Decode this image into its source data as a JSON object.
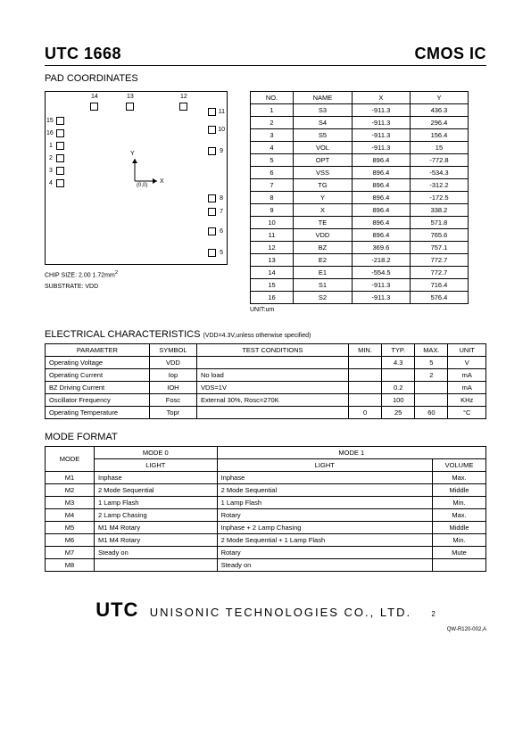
{
  "header": {
    "part": "UTC 1668",
    "type": "CMOS IC"
  },
  "section_pad_title": "PAD COORDINATES",
  "chip": {
    "note1": "CHIP SIZE: 2.00     1.72mm",
    "note1_sup": "2",
    "note2": "SUBSTRATE: VDD",
    "origin_label": "(0,0)",
    "x_label": "X",
    "y_label": "Y",
    "top_labels": [
      "14",
      "13",
      "12"
    ],
    "left_labels": [
      "15",
      "16",
      "1",
      "2",
      "3",
      "4"
    ],
    "right_labels": [
      "11",
      "10",
      "9",
      "8",
      "7",
      "6",
      "5"
    ]
  },
  "coord": {
    "headers": [
      "NO.",
      "NAME",
      "X",
      "Y"
    ],
    "rows": [
      [
        "1",
        "S3",
        "-911.3",
        "436.3"
      ],
      [
        "2",
        "S4",
        "-911.3",
        "296.4"
      ],
      [
        "3",
        "S5",
        "-911.3",
        "156.4"
      ],
      [
        "4",
        "VOL",
        "-911.3",
        "15"
      ],
      [
        "5",
        "OPT",
        "896.4",
        "-772.8"
      ],
      [
        "6",
        "VSS",
        "896.4",
        "-534.3"
      ],
      [
        "7",
        "TG",
        "896.4",
        "-312.2"
      ],
      [
        "8",
        "Y",
        "896.4",
        "-172.5"
      ],
      [
        "9",
        "X",
        "896.4",
        "338.2"
      ],
      [
        "10",
        "TE",
        "896.4",
        "571.8"
      ],
      [
        "11",
        "VDD",
        "896.4",
        "765.6"
      ],
      [
        "12",
        "BZ",
        "369.6",
        "757.1"
      ],
      [
        "13",
        "E2",
        "-218.2",
        "772.7"
      ],
      [
        "14",
        "E1",
        "-554.5",
        "772.7"
      ],
      [
        "15",
        "S1",
        "-911.3",
        "716.4"
      ],
      [
        "16",
        "S2",
        "-911.3",
        "576.4"
      ]
    ],
    "unit": "UNIT:um"
  },
  "ec": {
    "title": "ELECTRICAL CHARACTERISTICS",
    "cond": "(VDD=4.3V,unless otherwise specified)",
    "headers": [
      "PARAMETER",
      "SYMBOL",
      "TEST CONDITIONS",
      "MIN.",
      "TYP.",
      "MAX.",
      "UNIT"
    ],
    "rows": [
      [
        "Operating Voltage",
        "VDD",
        "",
        "",
        "4.3",
        "5",
        "V"
      ],
      [
        "Operating Current",
        "Iop",
        "No load",
        "",
        "",
        "2",
        "mA"
      ],
      [
        "BZ Driving Current",
        "IOH",
        "VDS=1V",
        "",
        "0.2",
        "",
        "mA"
      ],
      [
        "Oscillator Frequency",
        "Fosc",
        "External     30%, Rosc=270K",
        "",
        "100",
        "",
        "KHz"
      ],
      [
        "Operating Temperature",
        "Topr",
        "",
        "0",
        "25",
        "60",
        "°C"
      ]
    ]
  },
  "mode": {
    "title": "MODE FORMAT",
    "h_mode": "MODE",
    "h_mode0": "MODE 0",
    "h_mode1": "MODE 1",
    "h_light": "LIGHT",
    "h_volume": "VOLUME",
    "rows": [
      [
        "M1",
        "Inphase",
        "Inphase",
        "Max."
      ],
      [
        "M2",
        "2 Mode Sequential",
        "2 Mode Sequential",
        "Middle"
      ],
      [
        "M3",
        "1 Lamp Flash",
        "1 Lamp Flash",
        "Min."
      ],
      [
        "M4",
        "2 Lamp Chasing",
        "Rotary",
        "Max."
      ],
      [
        "M5",
        "M1    M4 Rotary",
        "Inphase + 2 Lamp Chasing",
        "Middle"
      ],
      [
        "M6",
        "M1    M4 Rotary",
        "2 Mode Sequential + 1 Lamp Flash",
        "Min."
      ],
      [
        "M7",
        "Steady on",
        "Rotary",
        "Mute"
      ],
      [
        "M8",
        "",
        "Steady on",
        ""
      ]
    ]
  },
  "footer": {
    "brand": "UTC",
    "company": "UNISONIC TECHNOLOGIES    CO., LTD.",
    "page": "2",
    "doc": "QW-R120-002,A"
  }
}
